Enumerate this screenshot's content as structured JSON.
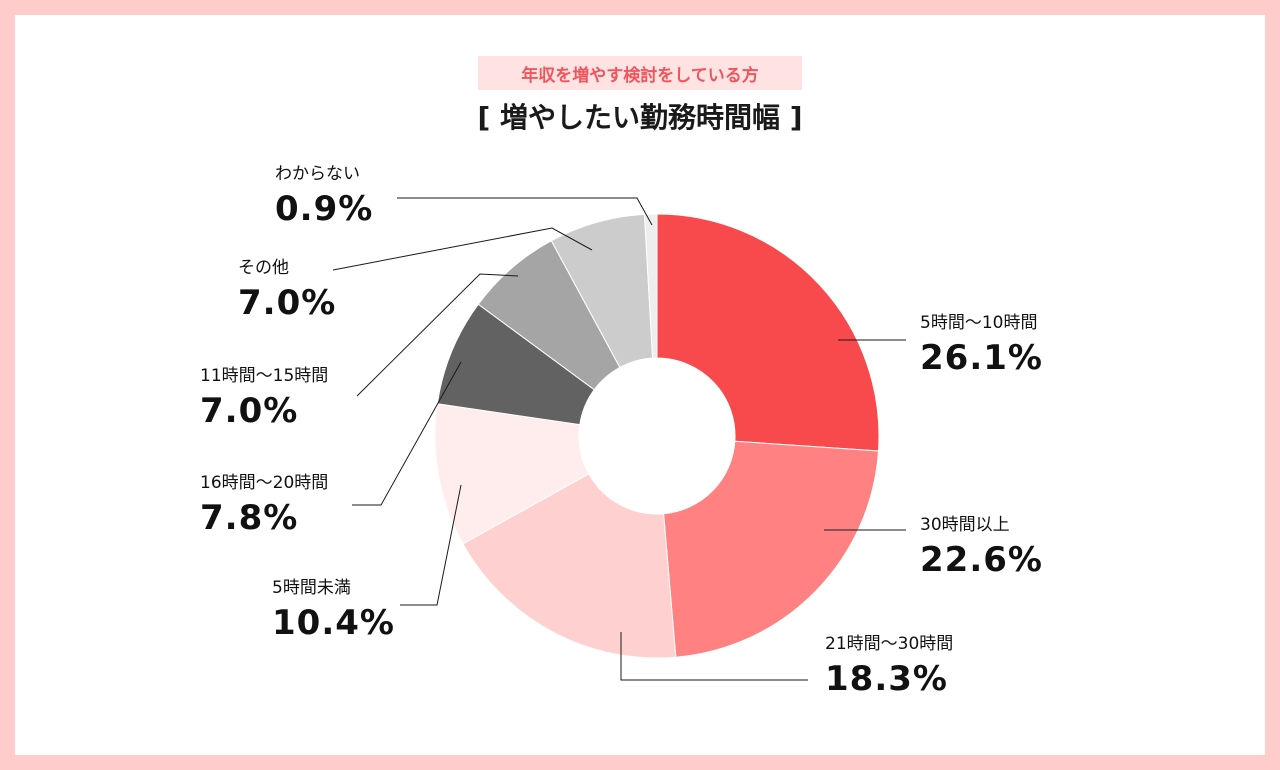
{
  "header": {
    "subtitle": "年収を増やす検討をしている方",
    "title": "[ 増やしたい勤務時間幅 ]"
  },
  "chart_data": {
    "type": "pie",
    "donut": true,
    "title": "[ 増やしたい勤務時間幅 ]",
    "subtitle": "年収を増やす検討をしている方",
    "slices": [
      {
        "label": "5時間〜10時間",
        "value": 26.1,
        "display": "26.1%",
        "color": "#F84A4C"
      },
      {
        "label": "30時間以上",
        "value": 22.6,
        "display": "22.6%",
        "color": "#FF8181"
      },
      {
        "label": "21時間〜30時間",
        "value": 18.3,
        "display": "18.3%",
        "color": "#FFD0D0"
      },
      {
        "label": "5時間未満",
        "value": 10.4,
        "display": "10.4%",
        "color": "#FFEDED"
      },
      {
        "label": "16時間〜20時間",
        "value": 7.8,
        "display": "7.8%",
        "color": "#626262"
      },
      {
        "label": "11時間〜15時間",
        "value": 7.0,
        "display": "7.0%",
        "color": "#A5A5A5"
      },
      {
        "label": "その他",
        "value": 7.0,
        "display": "7.0%",
        "color": "#CCCCCC"
      },
      {
        "label": "わからない",
        "value": 0.9,
        "display": "0.9%",
        "color": "#EEEEEE"
      }
    ]
  }
}
